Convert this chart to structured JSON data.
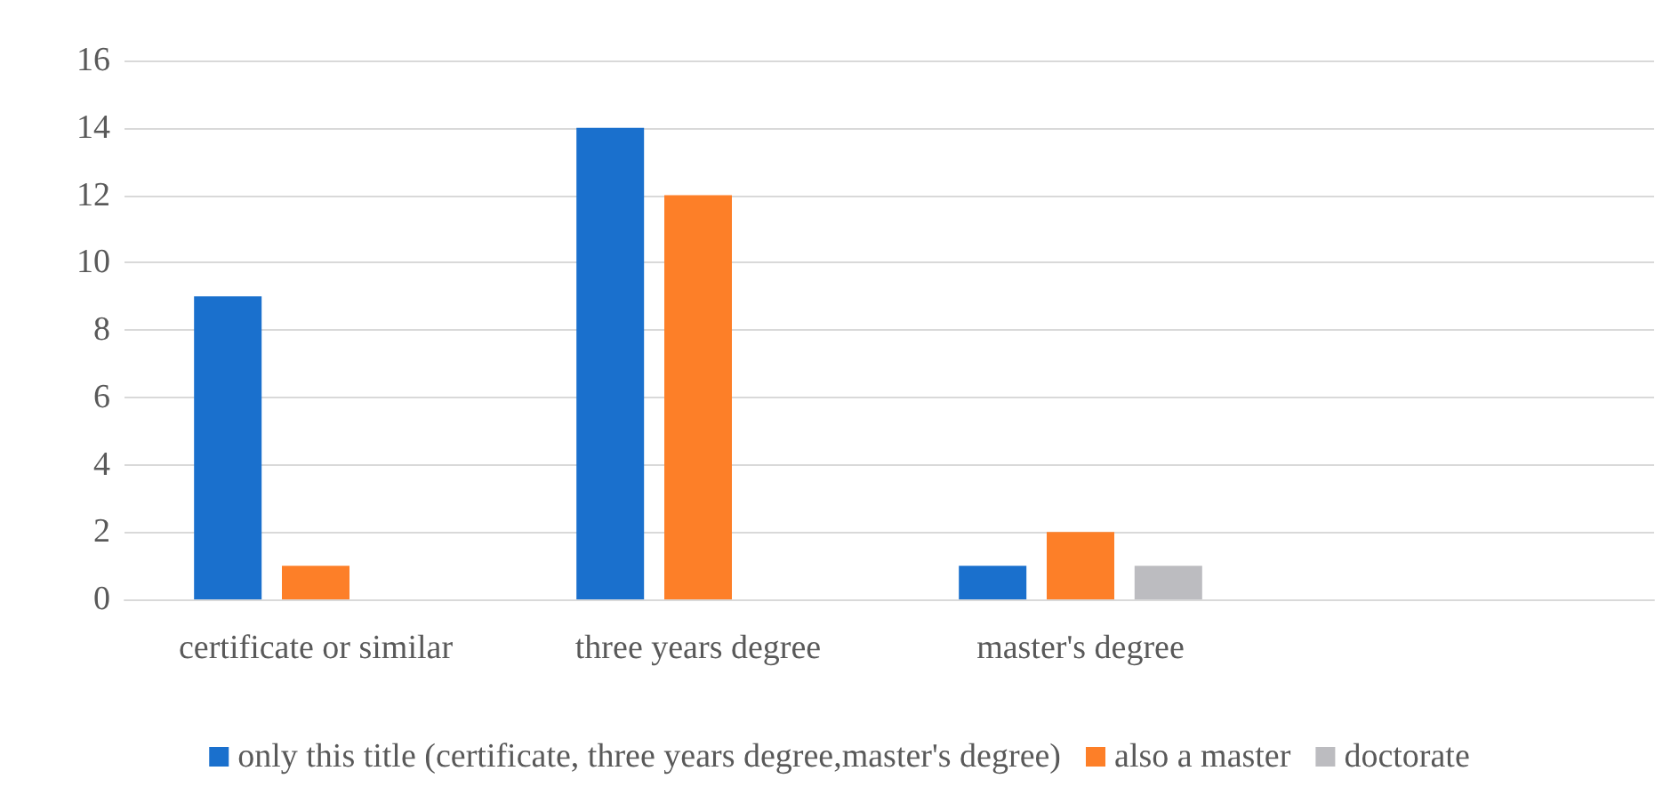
{
  "chart_data": {
    "type": "bar",
    "categories": [
      "certificate or similar",
      "three years degree",
      "master's degree",
      null
    ],
    "series": [
      {
        "name": "only this title (certificate, three years degree,master's degree)",
        "color": "#1a70cd",
        "values": [
          9,
          14,
          1,
          null
        ]
      },
      {
        "name": "also a master",
        "color": "#fd7f28",
        "values": [
          1,
          12,
          2,
          null
        ]
      },
      {
        "name": "doctorate",
        "color": "#bcbcc0",
        "values": [
          null,
          null,
          1,
          null
        ]
      }
    ],
    "ylim": [
      0,
      16
    ],
    "yticks": [
      0,
      2,
      4,
      6,
      8,
      10,
      12,
      14,
      16
    ],
    "grid": "y",
    "legend": "bottom"
  }
}
